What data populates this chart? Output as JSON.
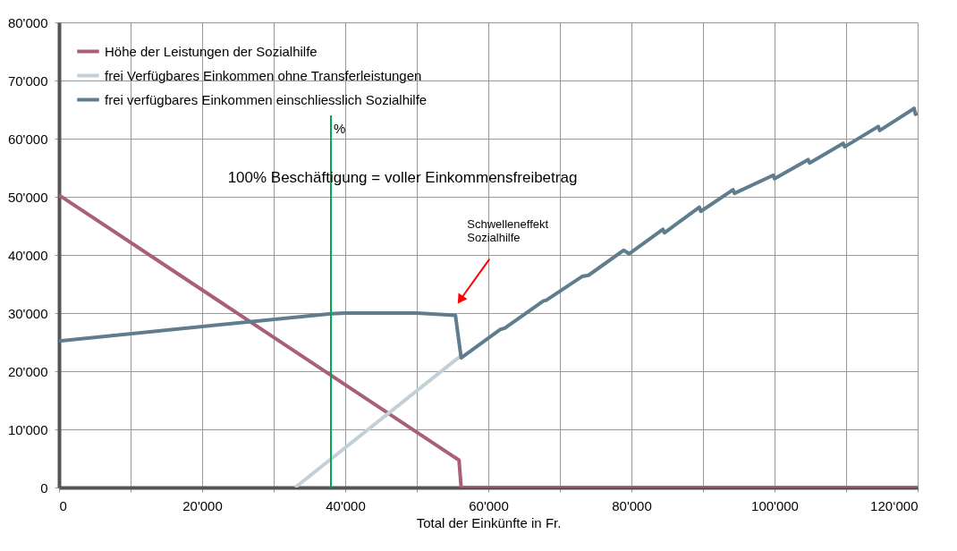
{
  "chart_data": {
    "type": "line",
    "xlabel": "Total der Einkünfte in Fr.",
    "xlim": [
      0,
      120000
    ],
    "ylim": [
      0,
      80000
    ],
    "xticks": [
      {
        "value": 0,
        "label": "0"
      },
      {
        "value": 10000,
        "label": null
      },
      {
        "value": 20000,
        "label": "20'000"
      },
      {
        "value": 30000,
        "label": null
      },
      {
        "value": 40000,
        "label": "40'000"
      },
      {
        "value": 50000,
        "label": null
      },
      {
        "value": 60000,
        "label": "60'000"
      },
      {
        "value": 70000,
        "label": null
      },
      {
        "value": 80000,
        "label": "80'000"
      },
      {
        "value": 90000,
        "label": null
      },
      {
        "value": 100000,
        "label": "100'000"
      },
      {
        "value": 110000,
        "label": null
      },
      {
        "value": 120000,
        "label": "120‘000"
      }
    ],
    "yticks": [
      {
        "value": 0,
        "label": "0"
      },
      {
        "value": 10000,
        "label": "10'000"
      },
      {
        "value": 20000,
        "label": "20'000"
      },
      {
        "value": 30000,
        "label": "30'000"
      },
      {
        "value": 40000,
        "label": "40'000"
      },
      {
        "value": 50000,
        "label": "50'000"
      },
      {
        "value": 60000,
        "label": "60'000"
      },
      {
        "value": 70000,
        "label": "70'000"
      },
      {
        "value": 80000,
        "label": "80'000"
      }
    ],
    "grid": true,
    "legend": "top left",
    "marker": "none",
    "line_style": "solid",
    "series": [
      {
        "name": "Höhe der Leistungen der Sozialhilfe",
        "color": "#a8607a",
        "x": [
          0,
          55900,
          56200,
          120000
        ],
        "values": [
          50300,
          4700,
          0,
          0
        ]
      },
      {
        "name": "frei Verfügbares Einkommen ohne Transferleistungen",
        "color": "#c3d0d8",
        "x": [
          33000,
          56000
        ],
        "values": [
          0,
          22500
        ]
      },
      {
        "name": "frei verfügbares Einkommen einschliesslich Sozialhilfe",
        "color": "#5f7d8e",
        "x": [
          0,
          38000,
          40000,
          45000,
          50000,
          55400,
          56200,
          61700,
          62300,
          67700,
          68100,
          73100,
          74000,
          78900,
          79700,
          84400,
          84600,
          89500,
          89700,
          94200,
          94400,
          99800,
          100000,
          104700,
          104900,
          109600,
          109800,
          114500,
          114700,
          119500,
          119700,
          120000
        ],
        "values": [
          25200,
          29900,
          30000,
          30000,
          30000,
          29600,
          22300,
          27200,
          27400,
          32100,
          32200,
          36300,
          36500,
          40800,
          40200,
          44400,
          43800,
          48200,
          47500,
          51200,
          50600,
          53700,
          53100,
          56400,
          55800,
          59200,
          58600,
          62100,
          61400,
          65200,
          64200,
          64400
        ]
      }
    ],
    "ref_lines": [
      {
        "axis": "x",
        "value": 38000,
        "label": "%",
        "color": "#00a84f"
      }
    ],
    "annotations": [
      "100% Beschäftigung = voller Einkommensfreibetrag",
      {
        "text": "Schwelleneffekt Sozialhilfe",
        "x": 56200,
        "y": 32500
      }
    ]
  }
}
